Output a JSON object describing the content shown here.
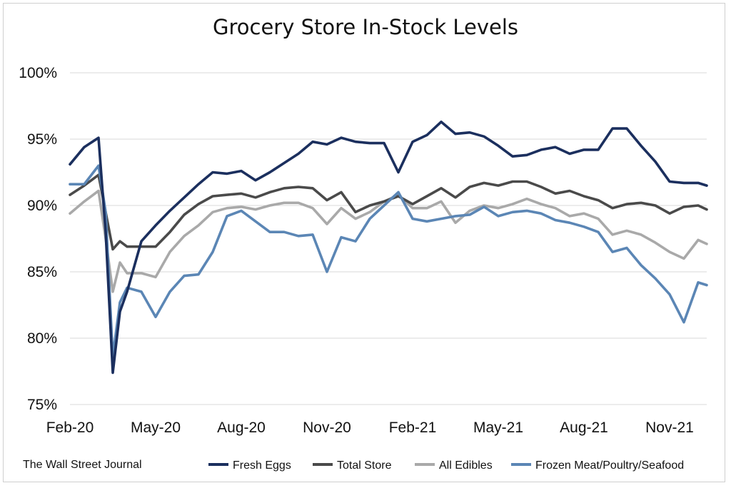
{
  "chart_data": {
    "type": "line",
    "title": "Grocery Store In-Stock Levels",
    "source": "The Wall Street Journal",
    "xlabel": "",
    "ylabel": "",
    "ylim": [
      75,
      100
    ],
    "y_ticks": [
      "100%",
      "95%",
      "90%",
      "85%",
      "80%",
      "75%"
    ],
    "x_ticks": [
      "Feb-20",
      "May-20",
      "Aug-20",
      "Nov-20",
      "Feb-21",
      "May-21",
      "Aug-21",
      "Nov-21"
    ],
    "grid": "horizontal",
    "legend_position": "bottom",
    "x": [
      0,
      0.5,
      1,
      1.25,
      1.5,
      1.75,
      2,
      2.5,
      3,
      3.5,
      4,
      4.5,
      5,
      5.5,
      6,
      6.5,
      7,
      7.5,
      8,
      8.5,
      9,
      9.5,
      10,
      10.5,
      11,
      11.5,
      12,
      12.5,
      13,
      13.5,
      14,
      14.5,
      15,
      15.5,
      16,
      16.5,
      17,
      17.5,
      18,
      18.5,
      19,
      19.5,
      20,
      20.5,
      21,
      21.5,
      22,
      22.3
    ],
    "series": [
      {
        "name": "Fresh Eggs",
        "color": "#1b2f5e",
        "values": [
          93.1,
          94.4,
          95.1,
          88.0,
          77.4,
          82.0,
          83.5,
          87.3,
          88.5,
          89.6,
          90.6,
          91.6,
          92.5,
          92.4,
          92.6,
          91.9,
          92.5,
          93.2,
          93.9,
          94.8,
          94.6,
          95.1,
          94.8,
          94.7,
          94.7,
          92.5,
          94.8,
          95.3,
          96.3,
          95.4,
          95.5,
          95.2,
          94.5,
          93.7,
          93.8,
          94.2,
          94.4,
          93.9,
          94.2,
          94.2,
          95.8,
          95.8,
          94.5,
          93.3,
          91.8,
          91.7,
          91.7,
          91.5
        ]
      },
      {
        "name": "Total Store",
        "color": "#4a4a4a",
        "values": [
          90.8,
          91.5,
          92.3,
          89.5,
          86.7,
          87.3,
          86.9,
          86.9,
          86.9,
          88.0,
          89.3,
          90.1,
          90.7,
          90.8,
          90.9,
          90.6,
          91.0,
          91.3,
          91.4,
          91.3,
          90.4,
          91.0,
          89.5,
          90.0,
          90.3,
          90.7,
          90.1,
          90.7,
          91.3,
          90.6,
          91.4,
          91.7,
          91.5,
          91.8,
          91.8,
          91.4,
          90.9,
          91.1,
          90.7,
          90.4,
          89.8,
          90.1,
          90.2,
          90.0,
          89.4,
          89.9,
          90.0,
          89.7
        ]
      },
      {
        "name": "All Edibles",
        "color": "#a9a9a9",
        "values": [
          89.4,
          90.3,
          91.1,
          87.5,
          83.5,
          85.7,
          84.9,
          84.9,
          84.6,
          86.5,
          87.7,
          88.5,
          89.5,
          89.8,
          89.9,
          89.7,
          90.0,
          90.2,
          90.2,
          89.8,
          88.6,
          89.8,
          89.0,
          89.5,
          90.3,
          90.8,
          89.8,
          89.8,
          90.3,
          88.7,
          89.6,
          90.0,
          89.8,
          90.1,
          90.5,
          90.1,
          89.8,
          89.2,
          89.4,
          89.0,
          87.8,
          88.1,
          87.8,
          87.2,
          86.5,
          86.0,
          87.4,
          87.1
        ]
      },
      {
        "name": "Frozen Meat/Poultry/Seafood",
        "color": "#5b86b5",
        "values": [
          91.6,
          91.6,
          93.0,
          89.5,
          78.6,
          82.7,
          83.8,
          83.5,
          81.6,
          83.5,
          84.7,
          84.8,
          86.5,
          89.2,
          89.6,
          88.8,
          88.0,
          88.0,
          87.7,
          87.8,
          85.0,
          87.6,
          87.3,
          89.0,
          90.0,
          91.0,
          89.0,
          88.8,
          89.0,
          89.2,
          89.3,
          89.9,
          89.2,
          89.5,
          89.6,
          89.4,
          88.9,
          88.7,
          88.4,
          88.0,
          86.5,
          86.8,
          85.5,
          84.5,
          83.3,
          81.2,
          84.2,
          84.0
        ]
      }
    ]
  }
}
